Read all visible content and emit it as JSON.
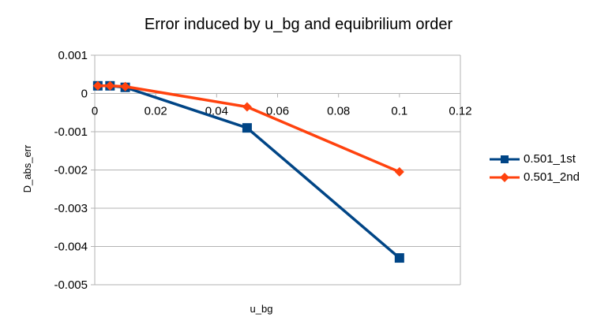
{
  "chart_data": {
    "type": "line",
    "title": "Error induced by u_bg and equibrilium order",
    "xlabel": "u_bg",
    "ylabel": "D_abs_err",
    "xlim": [
      0,
      0.12
    ],
    "ylim": [
      -0.005,
      0.001
    ],
    "x_ticks": [
      "0",
      "0.02",
      "0.04",
      "0.06",
      "0.08",
      "0.1",
      "0.12"
    ],
    "y_ticks": [
      "0.001",
      "0",
      "-0.001",
      "-0.002",
      "-0.003",
      "-0.004",
      "-0.005"
    ],
    "grid": "horizontal",
    "legend_position": "right",
    "series": [
      {
        "name": "0.501_1st",
        "color": "#004586",
        "marker": "square",
        "x": [
          0.001,
          0.005,
          0.01,
          0.05,
          0.1
        ],
        "y": [
          0.0002,
          0.0002,
          0.00016,
          -0.0009,
          -0.0043
        ]
      },
      {
        "name": "0.501_2nd",
        "color": "#ff420e",
        "marker": "diamond",
        "x": [
          0.001,
          0.005,
          0.01,
          0.05,
          0.1
        ],
        "y": [
          0.0002,
          0.0002,
          0.00018,
          -0.00035,
          -0.00205
        ]
      }
    ]
  }
}
